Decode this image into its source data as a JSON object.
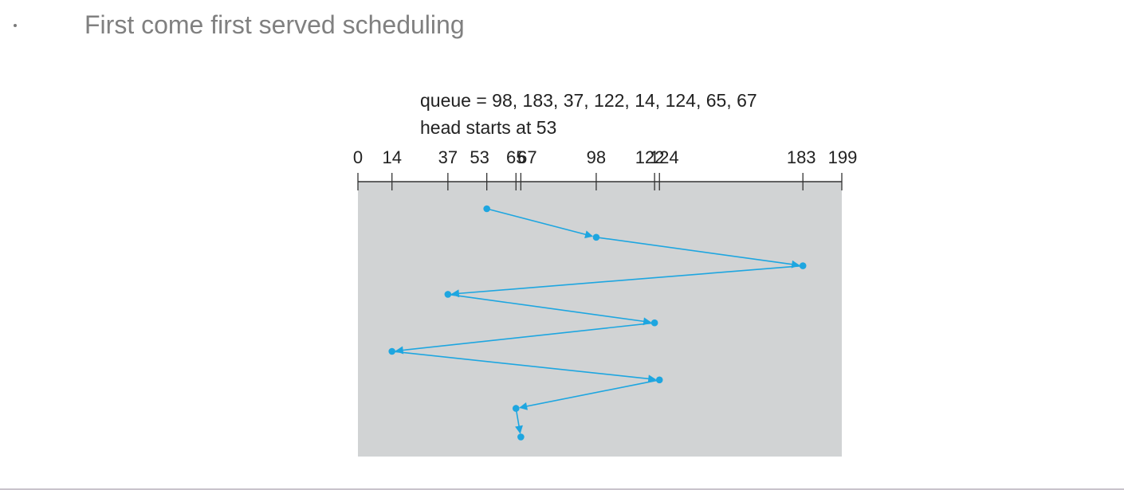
{
  "slide": {
    "bullet_text": "First come first served scheduling"
  },
  "diagram": {
    "queue_label": "queue = 98, 183, 37, 122, 14, 124, 65, 67",
    "head_label": "head starts at 53",
    "axis_min": 0,
    "axis_max": 199,
    "ticks": [
      0,
      14,
      37,
      53,
      65,
      67,
      98,
      122,
      124,
      183,
      199
    ],
    "tick_labels": [
      "0",
      "14",
      "37",
      "53",
      "65",
      "67",
      "98",
      "122",
      "124",
      "183",
      "199"
    ],
    "path": [
      53,
      98,
      183,
      37,
      122,
      14,
      124,
      65,
      67
    ],
    "colors": {
      "path": "#1ea6e0",
      "background": "#d1d3d4",
      "axis": "#333333",
      "heading": "#808080"
    }
  }
}
